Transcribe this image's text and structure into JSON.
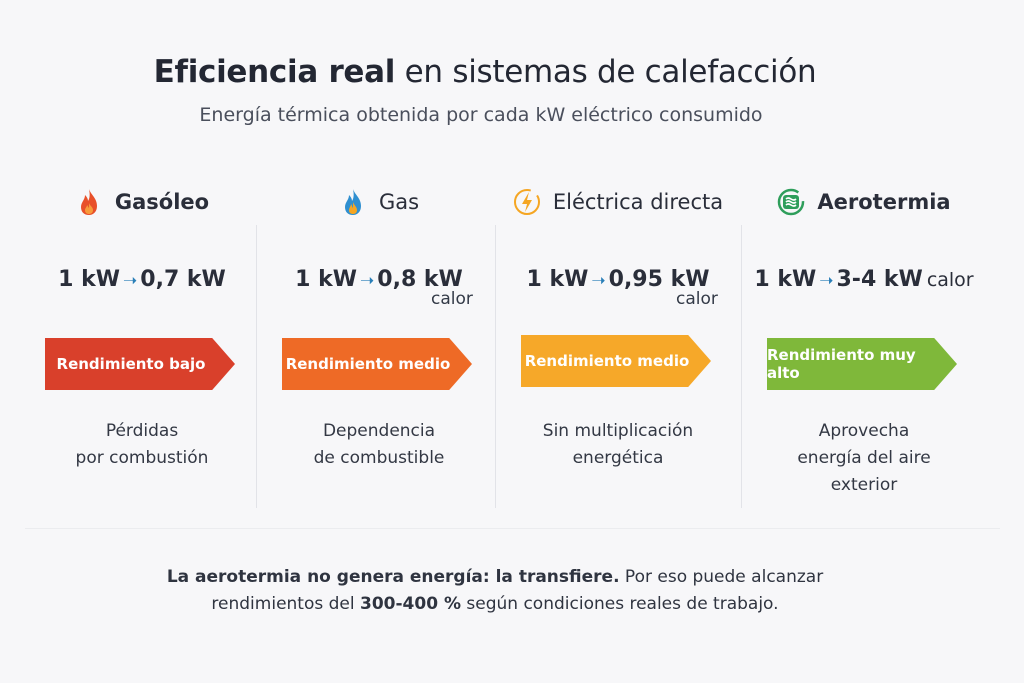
{
  "header": {
    "title_bold": "Eficiencia real",
    "title_rest": " en sistemas de calefacción",
    "subtitle": "Energía térmica obtenida por cada kW eléctrico consumido"
  },
  "columns": [
    {
      "name": "Gasóleo",
      "icon": "flame-icon",
      "input": "1 kW",
      "arrow": "➝",
      "output": "0,7 kW",
      "output_unit": "",
      "banner": "Rendimiento bajo",
      "banner_color": "#d9402b",
      "desc": [
        "Pérdidas",
        "por combustión"
      ]
    },
    {
      "name": "Gas",
      "icon": "gas-flame-icon",
      "input": "1 kW",
      "arrow": "➝",
      "output": "0,8 kW",
      "output_unit": "calor",
      "banner": "Rendimiento medio",
      "banner_color": "#ee6a26",
      "desc": [
        "Dependencia",
        "de combustible"
      ]
    },
    {
      "name": "Eléctrica directa",
      "icon": "lightning-icon",
      "input": "1 kW",
      "arrow": "➝",
      "output": "0,95 kW",
      "output_unit": "calor",
      "banner": "Rendimiento medio",
      "banner_color": "#f6a829",
      "desc": [
        "Sin multiplicación",
        "energética"
      ]
    },
    {
      "name": "Aerotermia",
      "icon": "heat-pump-icon",
      "input": "1 kW",
      "arrow": "➝",
      "output": "3-4 kW",
      "output_unit": "calor",
      "banner": "Rendimiento muy alto",
      "banner_color": "#7fb83a",
      "desc": [
        "Aprovecha",
        "energía del aire",
        "exterior"
      ]
    }
  ],
  "footer": {
    "bold1": "La aerotermia no genera energía: la transfiere.",
    "text1": " Por eso puede alcanzar",
    "text2a": "rendimientos del ",
    "bold2": "300-400 %",
    "text2b": " según condiciones reales de trabajo."
  }
}
